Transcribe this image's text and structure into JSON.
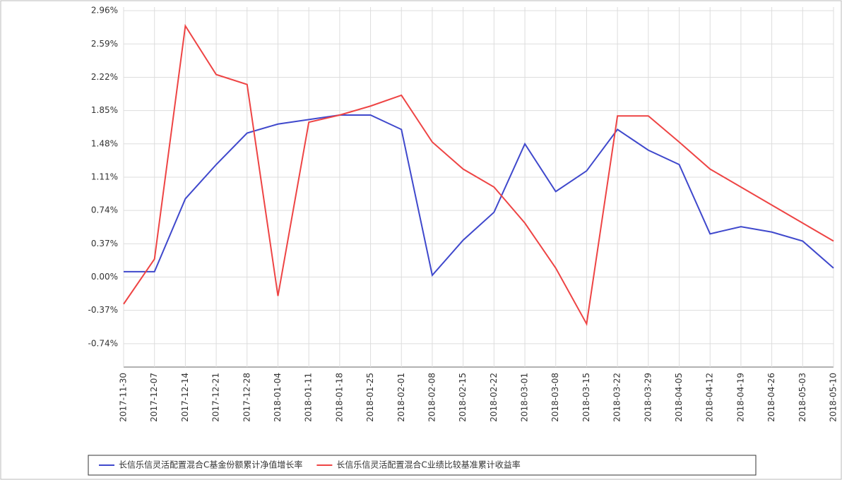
{
  "chart_data": {
    "type": "line",
    "categories": [
      "2017-11-30",
      "2017-12-07",
      "2017-12-14",
      "2017-12-21",
      "2017-12-28",
      "2018-01-04",
      "2018-01-11",
      "2018-01-18",
      "2018-01-25",
      "2018-02-01",
      "2018-02-08",
      "2018-02-15",
      "2018-02-22",
      "2018-03-01",
      "2018-03-08",
      "2018-03-15",
      "2018-03-22",
      "2018-03-29",
      "2018-04-05",
      "2018-04-12",
      "2018-04-19",
      "2018-04-26",
      "2018-05-03",
      "2018-05-10"
    ],
    "series": [
      {
        "name": "长信乐信灵活配置混合C基金份额累计净值增长率",
        "color": "#3f48cc",
        "values": [
          0.06,
          0.06,
          0.87,
          1.25,
          1.6,
          1.7,
          1.75,
          1.8,
          1.8,
          1.64,
          0.02,
          0.41,
          0.72,
          1.48,
          0.95,
          1.18,
          1.64,
          1.41,
          1.25,
          0.48,
          0.56,
          0.5,
          0.4,
          0.1
        ]
      },
      {
        "name": "长信乐信灵活配置混合C业绩比较基准累计收益率",
        "color": "#ee4444",
        "values": [
          -0.3,
          0.2,
          2.79,
          2.25,
          2.14,
          -0.21,
          1.72,
          1.8,
          1.9,
          2.02,
          1.5,
          1.2,
          1.0,
          0.6,
          0.1,
          -0.52,
          1.79,
          1.79,
          1.5,
          1.2,
          1.0,
          0.8,
          0.6,
          0.4
        ]
      }
    ],
    "ylim": [
      -1.0,
      3.0
    ],
    "yticks": [
      {
        "value": -0.74,
        "label": "-0.74%"
      },
      {
        "value": -0.37,
        "label": "-0.37%"
      },
      {
        "value": 0,
        "label": "0.00%"
      },
      {
        "value": 0.37,
        "label": "0.37%"
      },
      {
        "value": 0.74,
        "label": "0.74%"
      },
      {
        "value": 1.11,
        "label": "1.11%"
      },
      {
        "value": 1.48,
        "label": "1.48%"
      },
      {
        "value": 1.85,
        "label": "1.85%"
      },
      {
        "value": 2.22,
        "label": "2.22%"
      },
      {
        "value": 2.59,
        "label": "2.59%"
      },
      {
        "value": 2.96,
        "label": "2.96%"
      }
    ],
    "grid": true
  }
}
